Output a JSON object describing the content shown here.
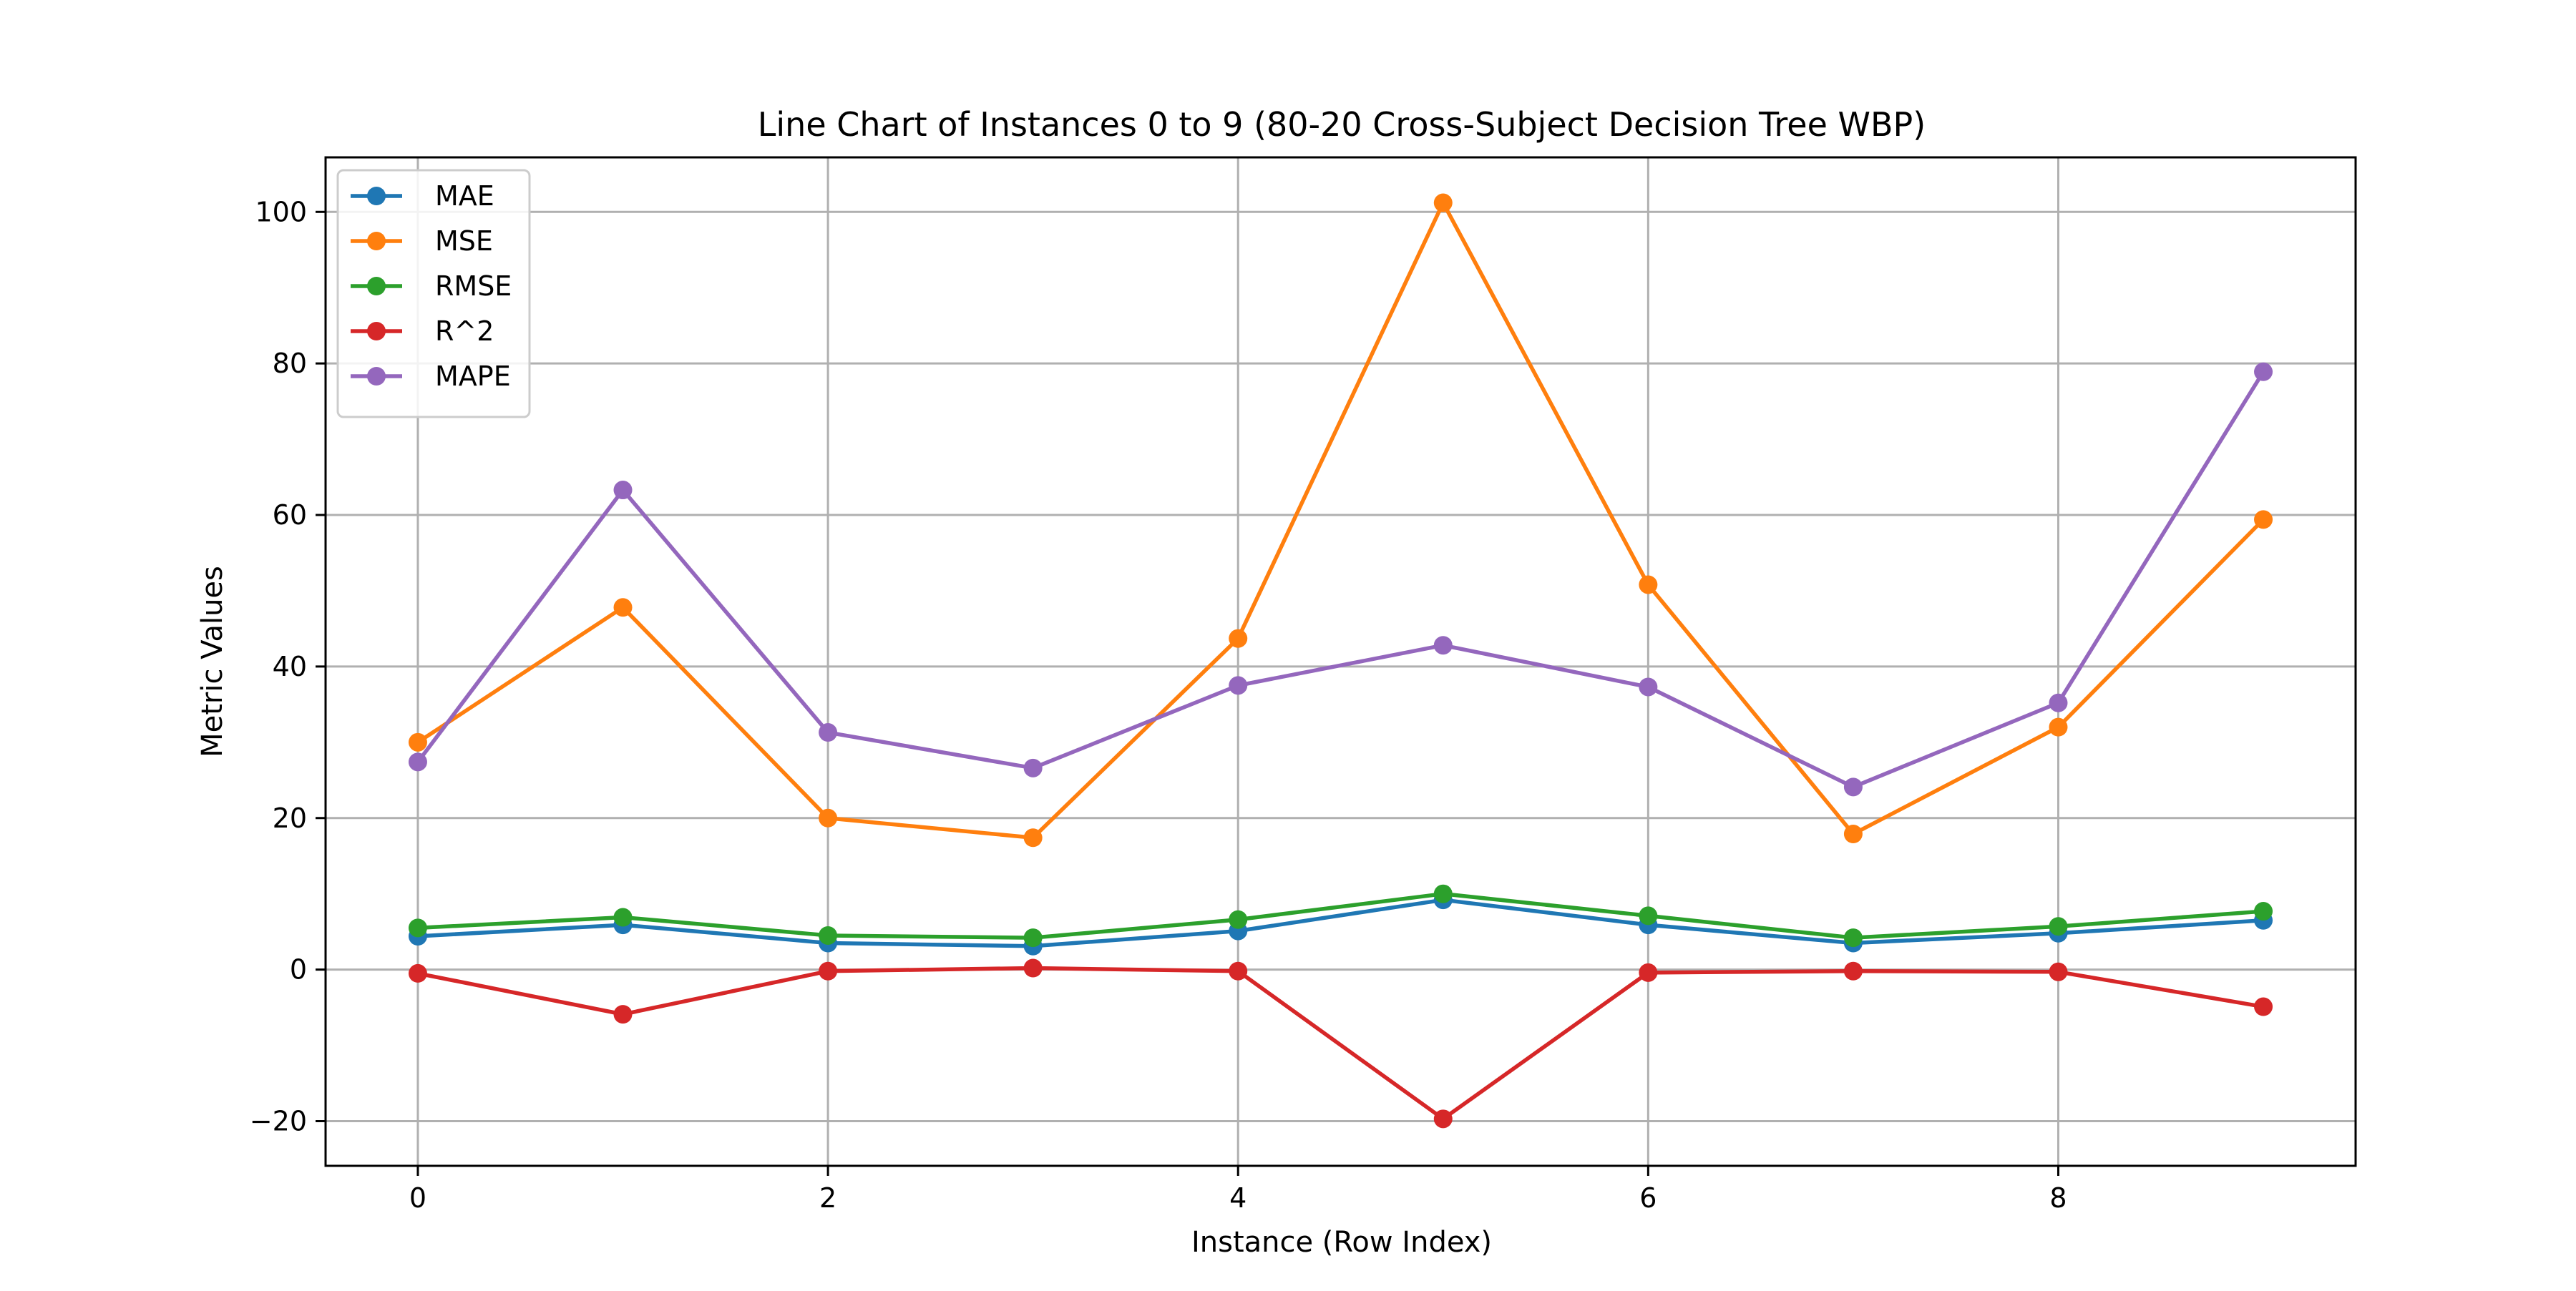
{
  "chart_data": {
    "type": "line",
    "title": "Line Chart of Instances 0 to 9 (80-20 Cross-Subject Decision Tree WBP)",
    "xlabel": "Instance (Row Index)",
    "ylabel": "Metric Values",
    "x": [
      0,
      1,
      2,
      3,
      4,
      5,
      6,
      7,
      8,
      9
    ],
    "xlim": [
      -0.45,
      9.45
    ],
    "ylim": [
      -25.9,
      107.2
    ],
    "xticks": [
      0,
      2,
      4,
      6,
      8
    ],
    "xtick_labels": [
      "0",
      "2",
      "4",
      "6",
      "8"
    ],
    "yticks": [
      -20,
      0,
      20,
      40,
      60,
      80,
      100
    ],
    "ytick_labels": [
      "−20",
      "0",
      "20",
      "40",
      "60",
      "80",
      "100"
    ],
    "grid": true,
    "legend_position": "top-left",
    "series": [
      {
        "name": "MAE",
        "color": "#1f77b4",
        "values": [
          4.4,
          5.9,
          3.5,
          3.1,
          5.1,
          9.2,
          5.9,
          3.5,
          4.8,
          6.5
        ]
      },
      {
        "name": "MSE",
        "color": "#ff7f0e",
        "values": [
          30.0,
          47.8,
          20.0,
          17.4,
          43.7,
          101.2,
          50.8,
          17.9,
          32.0,
          59.4
        ]
      },
      {
        "name": "RMSE",
        "color": "#2ca02c",
        "values": [
          5.5,
          6.9,
          4.5,
          4.2,
          6.6,
          10.0,
          7.1,
          4.2,
          5.7,
          7.7
        ]
      },
      {
        "name": "R^2",
        "color": "#d62728",
        "values": [
          -0.5,
          -5.9,
          -0.2,
          0.2,
          -0.2,
          -19.7,
          -0.4,
          -0.2,
          -0.3,
          -4.9
        ]
      },
      {
        "name": "MAPE",
        "color": "#9467bd",
        "values": [
          27.4,
          63.3,
          31.3,
          26.6,
          37.5,
          42.8,
          37.3,
          24.1,
          35.2,
          78.9
        ]
      }
    ]
  }
}
